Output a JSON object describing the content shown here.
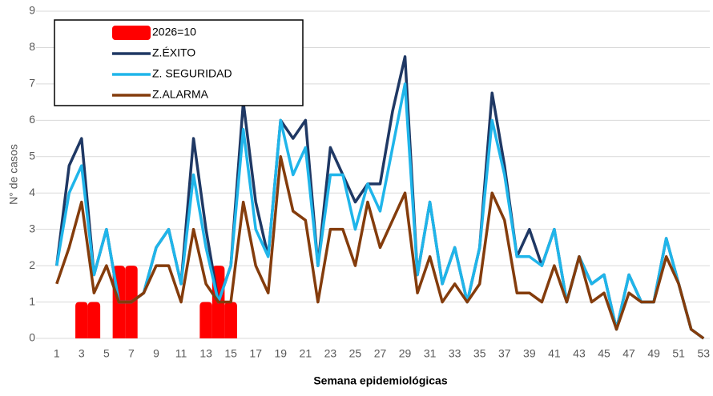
{
  "chart_data": {
    "type": "line",
    "xlabel": "Semana epidemiológicas",
    "ylabel": "N° de casos",
    "categories": [
      1,
      null,
      3,
      null,
      5,
      null,
      7,
      null,
      9,
      null,
      11,
      null,
      13,
      null,
      15,
      null,
      17,
      null,
      19,
      null,
      21,
      null,
      23,
      null,
      25,
      null,
      27,
      null,
      29,
      null,
      31,
      null,
      33,
      null,
      35,
      null,
      37,
      null,
      39,
      null,
      41,
      null,
      43,
      null,
      45,
      null,
      47,
      null,
      49,
      null,
      51,
      null,
      53
    ],
    "ylim": [
      0,
      9
    ],
    "yticks": [
      0,
      1,
      2,
      3,
      4,
      5,
      6,
      7,
      8,
      9
    ],
    "grid": true,
    "legend": "upper left",
    "series": [
      {
        "name": "2026=10",
        "type": "bar",
        "color": "#ff0000",
        "values": [
          0,
          0,
          1,
          1,
          0,
          2,
          2,
          0,
          0,
          0,
          0,
          0,
          1,
          2,
          1,
          null,
          null,
          null,
          null,
          null,
          null,
          null,
          null,
          null,
          null,
          null,
          null,
          null,
          null,
          null,
          null,
          null,
          null,
          null,
          null,
          null,
          null,
          null,
          null,
          null,
          null,
          null,
          null,
          null,
          null,
          null,
          null,
          null,
          null,
          null,
          null,
          null,
          null
        ]
      },
      {
        "name": "Z.ÉXITO",
        "type": "line",
        "color": "#1f3864",
        "values": [
          2,
          4.75,
          5.5,
          1.75,
          3,
          1,
          1,
          1.25,
          2.5,
          3,
          1.5,
          5.5,
          3,
          1,
          2,
          6.5,
          3.75,
          2.25,
          6,
          5.5,
          6,
          2,
          5.25,
          4.5,
          3.75,
          4.25,
          4.25,
          6.25,
          7.75,
          1.75,
          3.75,
          1.5,
          2.5,
          1,
          2.5,
          6.75,
          4.75,
          2.25,
          3,
          2,
          3,
          1,
          2.25,
          1.5,
          1.75,
          0.25,
          1.75,
          1,
          1,
          2.75,
          1.5,
          0.25,
          0
        ]
      },
      {
        "name": "Z. SEGURIDAD",
        "type": "line",
        "color": "#1fb5ea",
        "values": [
          2,
          4,
          4.75,
          1.75,
          3,
          1,
          1,
          1.25,
          2.5,
          3,
          1.5,
          4.5,
          2.5,
          1,
          2,
          5.75,
          3,
          2.25,
          6,
          4.5,
          5.25,
          2,
          4.5,
          4.5,
          3,
          4.25,
          3.5,
          5.25,
          7,
          1.75,
          3.75,
          1.5,
          2.5,
          1,
          2.5,
          6,
          4.5,
          2.25,
          2.25,
          2,
          3,
          1,
          2.25,
          1.5,
          1.75,
          0.25,
          1.75,
          1,
          1,
          2.75,
          1.5,
          0.25,
          0
        ]
      },
      {
        "name": "Z.ALARMA",
        "type": "line",
        "color": "#843c0c",
        "values": [
          1.5,
          2.5,
          3.75,
          1.25,
          2,
          1,
          1,
          1.25,
          2,
          2,
          1,
          3,
          1.5,
          1,
          1,
          3.75,
          2,
          1.25,
          5,
          3.5,
          3.25,
          1,
          3,
          3,
          2,
          3.75,
          2.5,
          3.25,
          4,
          1.25,
          2.25,
          1,
          1.5,
          1,
          1.5,
          4,
          3.25,
          1.25,
          1.25,
          1,
          2,
          1,
          2.25,
          1,
          1.25,
          0.25,
          1.25,
          1,
          1,
          2.25,
          1.5,
          0.25,
          0
        ]
      }
    ]
  }
}
